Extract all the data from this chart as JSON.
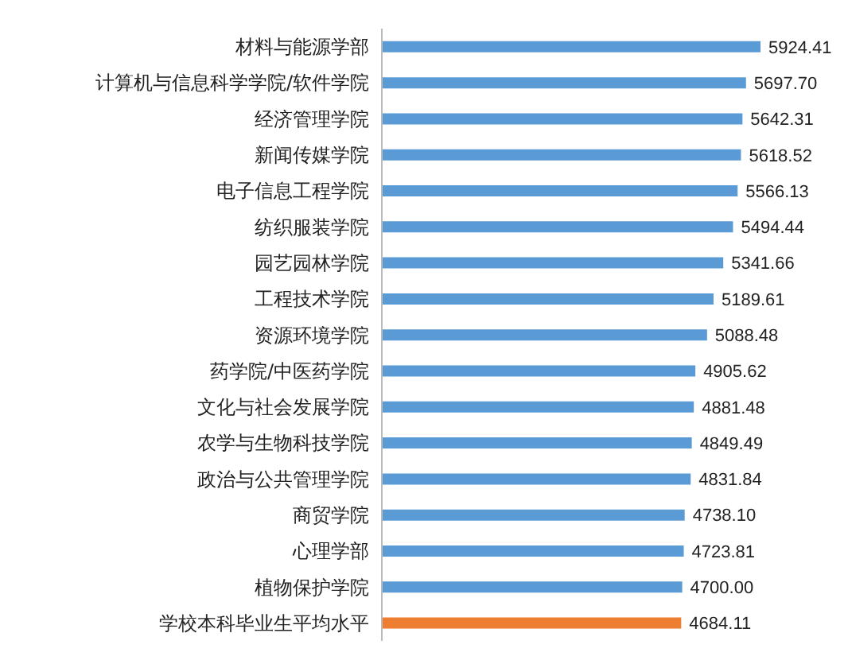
{
  "chart_data": {
    "type": "bar",
    "orientation": "horizontal",
    "value_labels": [
      "5924.41",
      "5697.70",
      "5642.31",
      "5618.52",
      "5566.13",
      "5494.44",
      "5341.66",
      "5189.61",
      "5088.48",
      "4905.62",
      "4881.48",
      "4849.49",
      "4831.84",
      "4738.10",
      "4723.81",
      "4700.00",
      "4684.11"
    ],
    "categories": [
      "材料与能源学部",
      "计算机与信息科学学院/软件学院",
      "经济管理学院",
      "新闻传媒学院",
      "电子信息工程学院",
      "纺织服装学院",
      "园艺园林学院",
      "工程技术学院",
      "资源环境学院",
      "药学院/中医药学院",
      "文化与社会发展学院",
      "农学与生物科技学院",
      "政治与公共管理学院",
      "商贸学院",
      "心理学部",
      "植物保护学院",
      "学校本科毕业生平均水平"
    ],
    "values": [
      5924.41,
      5697.7,
      5642.31,
      5618.52,
      5566.13,
      5494.44,
      5341.66,
      5189.61,
      5088.48,
      4905.62,
      4881.48,
      4849.49,
      4831.84,
      4738.1,
      4723.81,
      4700.0,
      4684.11
    ],
    "colors": [
      "#5b9bd5",
      "#5b9bd5",
      "#5b9bd5",
      "#5b9bd5",
      "#5b9bd5",
      "#5b9bd5",
      "#5b9bd5",
      "#5b9bd5",
      "#5b9bd5",
      "#5b9bd5",
      "#5b9bd5",
      "#5b9bd5",
      "#5b9bd5",
      "#5b9bd5",
      "#5b9bd5",
      "#5b9bd5",
      "#ed7d31"
    ]
  }
}
